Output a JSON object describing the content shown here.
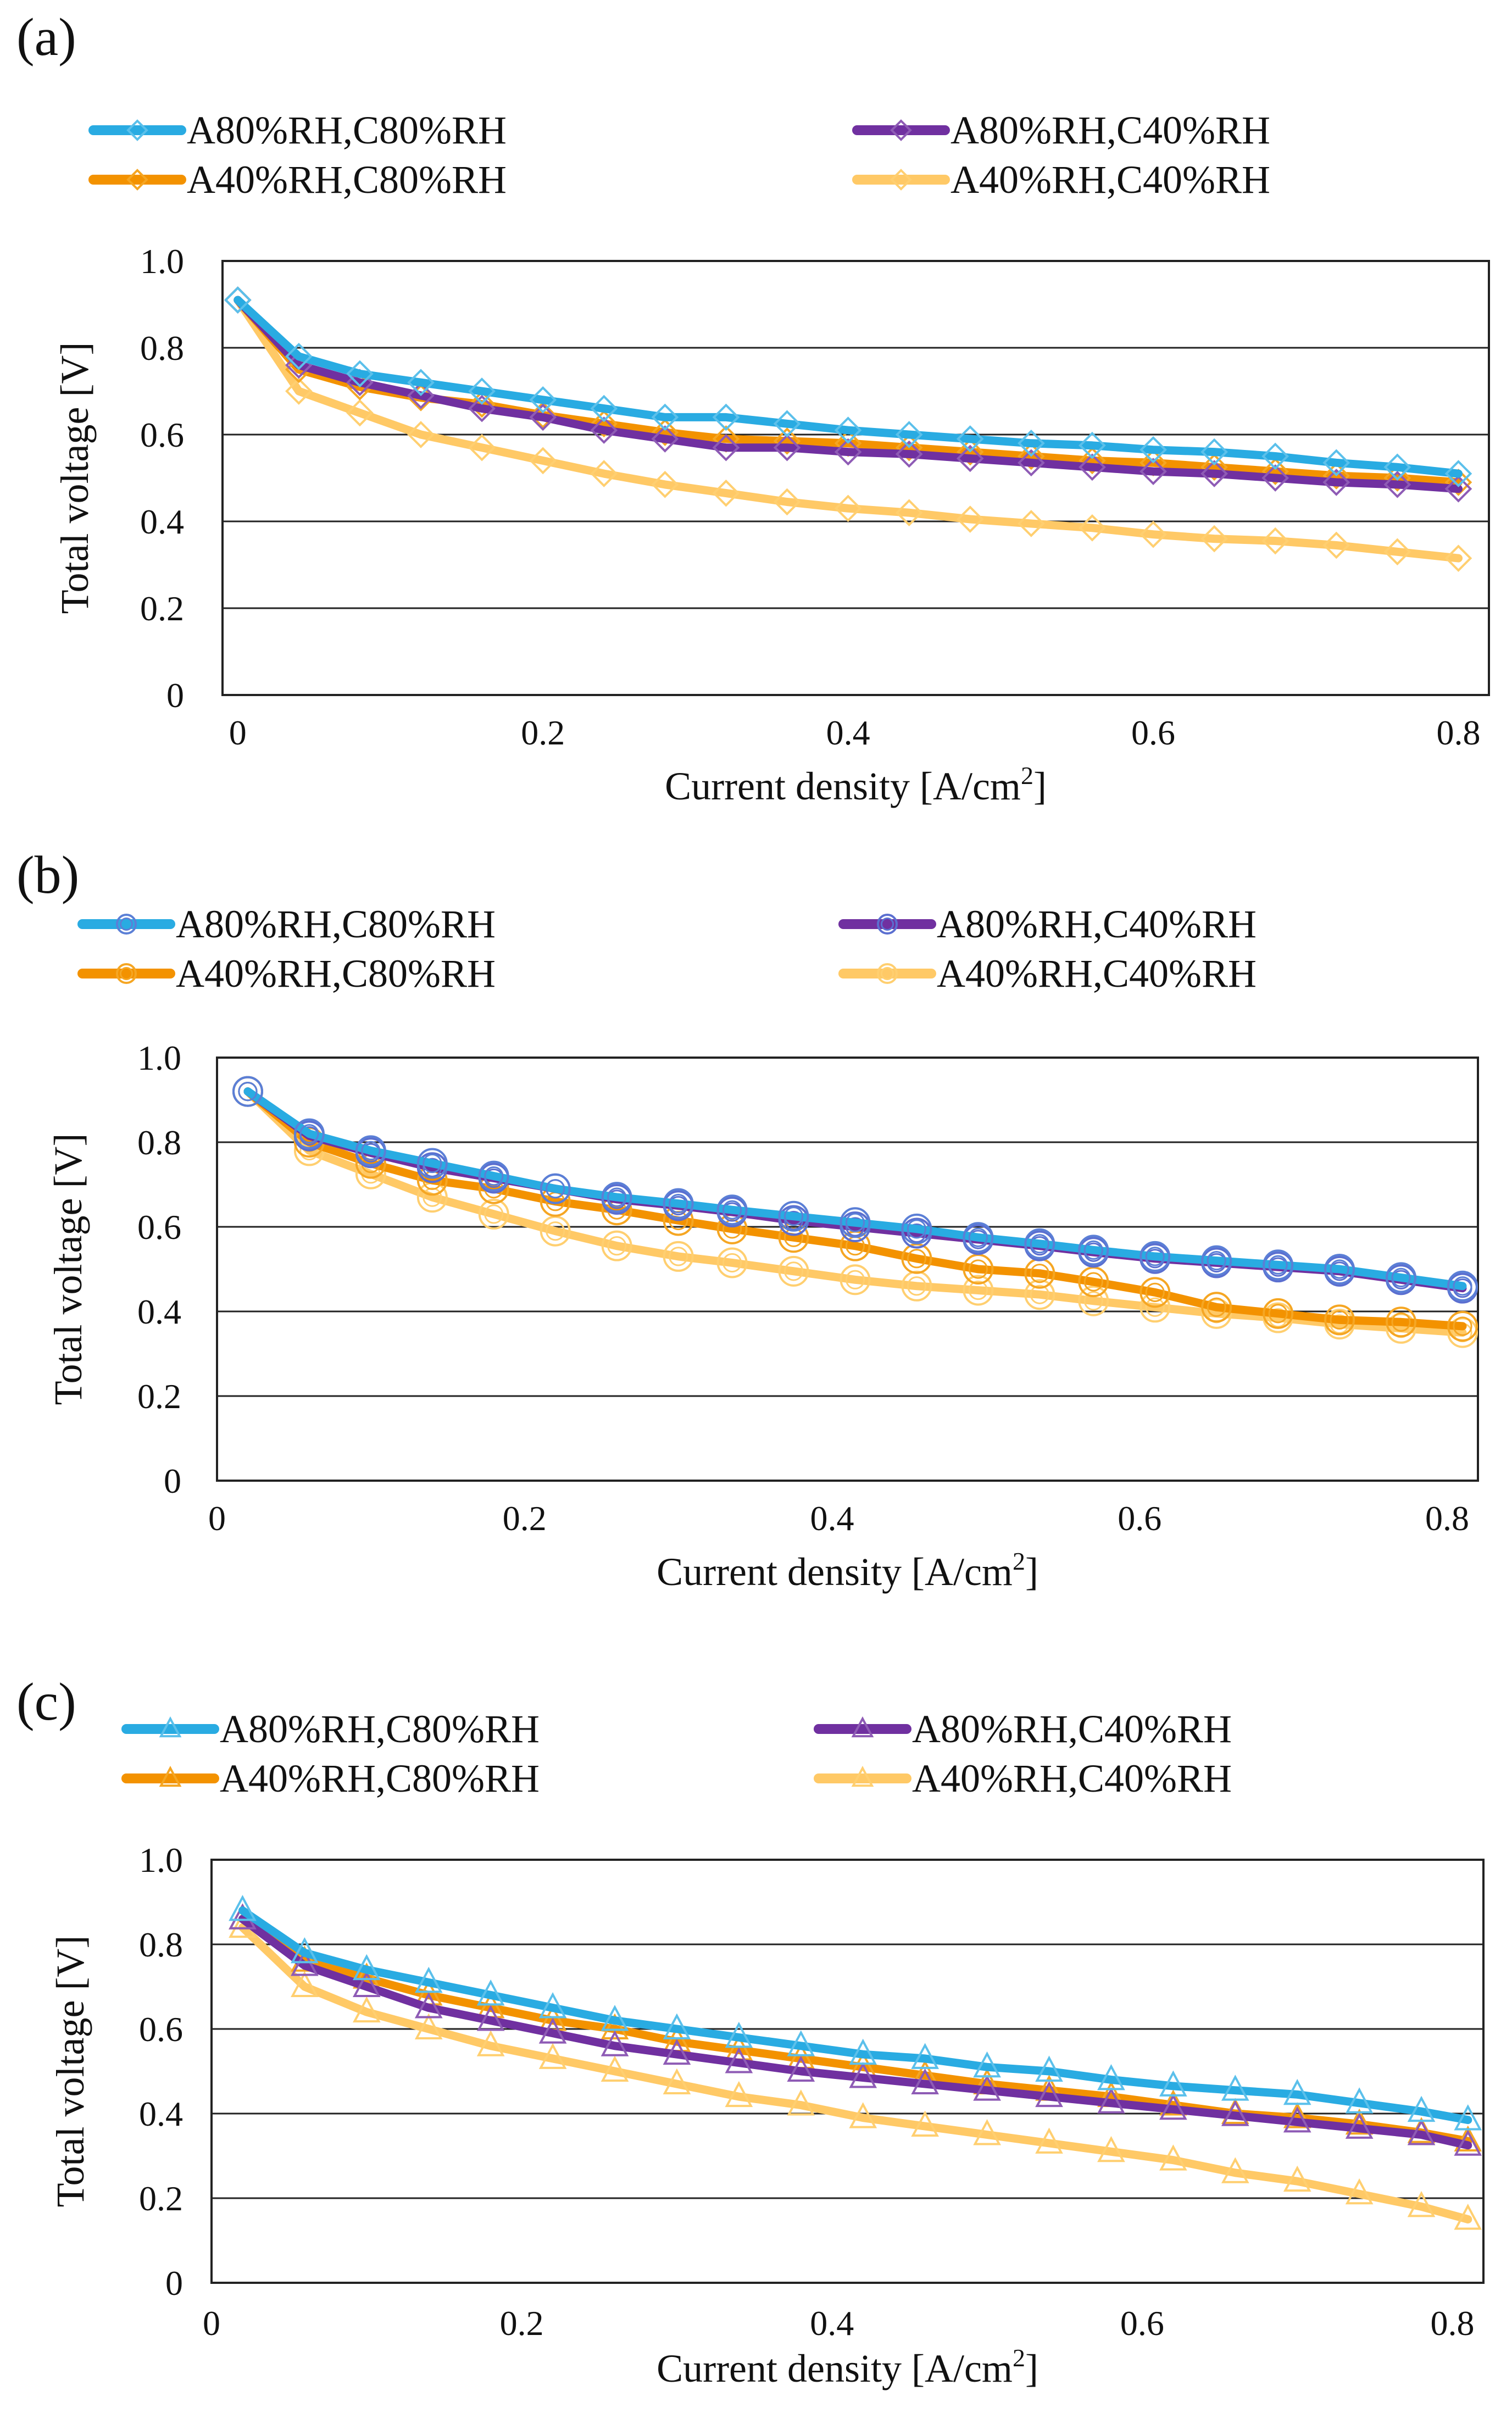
{
  "figure": {
    "panels": [
      {
        "label": "(a)",
        "xlabel_main": "Current density [A/cm",
        "xlabel_sup": "2",
        "xlabel_end": "]",
        "ylabel": "Total voltage [V]"
      },
      {
        "label": "(b)",
        "xlabel_main": "Current density [A/cm",
        "xlabel_sup": "2",
        "xlabel_end": "]",
        "ylabel": "Total voltage [V]"
      },
      {
        "label": "(c)",
        "xlabel_main": "Current density [A/cm",
        "xlabel_sup": "2",
        "xlabel_end": "]",
        "ylabel": "Total voltage [V]"
      }
    ]
  },
  "chart_data": [
    {
      "type": "line",
      "title": "(a)",
      "marker": "diamond",
      "xlabel": "Current density [A/cm2]",
      "ylabel": "Total voltage [V]",
      "xlim": [
        -0.01,
        0.82
      ],
      "ylim": [
        0,
        1.0
      ],
      "xticks": [
        0,
        0.2,
        0.4,
        0.6,
        0.8
      ],
      "xtick_labels": [
        "0",
        "0.2",
        "0.4",
        "0.6",
        "0.8"
      ],
      "yticks": [
        0,
        0.2,
        0.4,
        0.6,
        0.8,
        1.0
      ],
      "ytick_labels": [
        "0",
        "0.2",
        "0.4",
        "0.6",
        "0.8",
        "1.0"
      ],
      "grid": "horizontal",
      "x": [
        0,
        0.04,
        0.08,
        0.12,
        0.16,
        0.2,
        0.24,
        0.28,
        0.32,
        0.36,
        0.4,
        0.44,
        0.48,
        0.52,
        0.56,
        0.6,
        0.64,
        0.68,
        0.72,
        0.76,
        0.8
      ],
      "series": [
        {
          "name": "A80%RH,C80%RH",
          "color": "#29abe2",
          "marker_color": "#5bc0eb",
          "values": [
            0.91,
            0.78,
            0.74,
            0.72,
            0.7,
            0.68,
            0.66,
            0.64,
            0.64,
            0.625,
            0.61,
            0.6,
            0.59,
            0.58,
            0.575,
            0.565,
            0.56,
            0.55,
            0.535,
            0.525,
            0.51
          ]
        },
        {
          "name": "A80%RH,C40%RH",
          "color": "#7030a0",
          "marker_color": "#8e5bb5",
          "values": [
            0.91,
            0.76,
            0.72,
            0.69,
            0.66,
            0.64,
            0.61,
            0.59,
            0.57,
            0.57,
            0.56,
            0.555,
            0.545,
            0.535,
            0.525,
            0.515,
            0.51,
            0.5,
            0.49,
            0.485,
            0.475
          ]
        },
        {
          "name": "A40%RH,C80%RH",
          "color": "#f39200",
          "marker_color": "#f5a623",
          "values": [
            0.91,
            0.75,
            0.71,
            0.685,
            0.67,
            0.645,
            0.625,
            0.605,
            0.59,
            0.585,
            0.58,
            0.57,
            0.56,
            0.55,
            0.54,
            0.535,
            0.525,
            0.515,
            0.505,
            0.5,
            0.49
          ]
        },
        {
          "name": "A40%RH,C40%RH",
          "color": "#ffc966",
          "marker_color": "#ffcf70",
          "values": [
            0.91,
            0.7,
            0.65,
            0.6,
            0.57,
            0.54,
            0.51,
            0.485,
            0.465,
            0.445,
            0.43,
            0.42,
            0.405,
            0.395,
            0.385,
            0.37,
            0.36,
            0.355,
            0.345,
            0.33,
            0.315
          ]
        }
      ]
    },
    {
      "type": "line",
      "title": "(b)",
      "marker": "circle",
      "xlabel": "Current density [A/cm2]",
      "ylabel": "Total voltage [V]",
      "xlim": [
        0,
        0.82
      ],
      "ylim": [
        0,
        1.0
      ],
      "xticks": [
        0,
        0.2,
        0.4,
        0.6,
        0.8
      ],
      "xtick_labels": [
        "0",
        "0.2",
        "0.4",
        "0.6",
        "0.8"
      ],
      "yticks": [
        0,
        0.2,
        0.4,
        0.6,
        0.8,
        1.0
      ],
      "ytick_labels": [
        "0",
        "0.2",
        "0.4",
        "0.6",
        "0.8",
        "1.0"
      ],
      "grid": "horizontal",
      "x": [
        0.02,
        0.06,
        0.1,
        0.14,
        0.18,
        0.22,
        0.26,
        0.3,
        0.335,
        0.375,
        0.415,
        0.455,
        0.495,
        0.535,
        0.57,
        0.61,
        0.65,
        0.69,
        0.73,
        0.77,
        0.81
      ],
      "series": [
        {
          "name": "A80%RH,C80%RH",
          "color": "#29abe2",
          "marker_color": "#5b7fd6",
          "values": [
            0.92,
            0.82,
            0.78,
            0.75,
            0.72,
            0.69,
            0.67,
            0.655,
            0.64,
            0.625,
            0.61,
            0.595,
            0.575,
            0.56,
            0.545,
            0.53,
            0.52,
            0.51,
            0.5,
            0.48,
            0.46
          ]
        },
        {
          "name": "A80%RH,C40%RH",
          "color": "#7030a0",
          "marker_color": "#5b6fd0",
          "values": [
            0.92,
            0.815,
            0.775,
            0.74,
            0.715,
            0.69,
            0.665,
            0.65,
            0.635,
            0.615,
            0.6,
            0.585,
            0.57,
            0.555,
            0.54,
            0.525,
            0.515,
            0.505,
            0.495,
            0.475,
            0.455
          ]
        },
        {
          "name": "A40%RH,C80%RH",
          "color": "#f39200",
          "marker_color": "#f5a623",
          "values": [
            0.92,
            0.8,
            0.75,
            0.71,
            0.69,
            0.66,
            0.64,
            0.615,
            0.595,
            0.575,
            0.555,
            0.525,
            0.5,
            0.49,
            0.47,
            0.445,
            0.41,
            0.395,
            0.38,
            0.375,
            0.365
          ]
        },
        {
          "name": "A40%RH,C40%RH",
          "color": "#ffc966",
          "marker_color": "#ffcf70",
          "values": [
            0.92,
            0.78,
            0.725,
            0.67,
            0.63,
            0.59,
            0.555,
            0.53,
            0.515,
            0.495,
            0.475,
            0.46,
            0.45,
            0.44,
            0.425,
            0.41,
            0.395,
            0.385,
            0.37,
            0.36,
            0.35
          ]
        }
      ]
    },
    {
      "type": "line",
      "title": "(c)",
      "marker": "triangle",
      "xlabel": "Current density [A/cm2]",
      "ylabel": "Total voltage [V]",
      "xlim": [
        0,
        0.82
      ],
      "ylim": [
        0,
        1.0
      ],
      "xticks": [
        0,
        0.2,
        0.4,
        0.6,
        0.8
      ],
      "xtick_labels": [
        "0",
        "0.2",
        "0.4",
        "0.6",
        "0.8"
      ],
      "yticks": [
        0,
        0.2,
        0.4,
        0.6,
        0.8,
        1.0
      ],
      "ytick_labels": [
        "0",
        "0.2",
        "0.4",
        "0.6",
        "0.8",
        "1.0"
      ],
      "grid": "horizontal",
      "x": [
        0.02,
        0.06,
        0.1,
        0.14,
        0.18,
        0.22,
        0.26,
        0.3,
        0.34,
        0.38,
        0.42,
        0.46,
        0.5,
        0.54,
        0.58,
        0.62,
        0.66,
        0.7,
        0.74,
        0.78,
        0.81
      ],
      "series": [
        {
          "name": "A80%RH,C80%RH",
          "color": "#29abe2",
          "marker_color": "#5bc0eb",
          "values": [
            0.88,
            0.78,
            0.74,
            0.71,
            0.68,
            0.65,
            0.62,
            0.6,
            0.58,
            0.56,
            0.54,
            0.53,
            0.51,
            0.5,
            0.48,
            0.465,
            0.455,
            0.445,
            0.425,
            0.405,
            0.385
          ]
        },
        {
          "name": "A80%RH,C40%RH",
          "color": "#7030a0",
          "marker_color": "#8e5bb5",
          "values": [
            0.86,
            0.75,
            0.7,
            0.65,
            0.62,
            0.59,
            0.56,
            0.54,
            0.52,
            0.5,
            0.485,
            0.47,
            0.455,
            0.44,
            0.425,
            0.41,
            0.395,
            0.38,
            0.365,
            0.35,
            0.325
          ]
        },
        {
          "name": "A40%RH,C80%RH",
          "color": "#f39200",
          "marker_color": "#f5a623",
          "values": [
            0.86,
            0.76,
            0.72,
            0.68,
            0.65,
            0.62,
            0.6,
            0.57,
            0.55,
            0.53,
            0.51,
            0.49,
            0.47,
            0.455,
            0.44,
            0.42,
            0.4,
            0.39,
            0.375,
            0.355,
            0.335
          ]
        },
        {
          "name": "A40%RH,C40%RH",
          "color": "#ffc966",
          "marker_color": "#ffcf70",
          "values": [
            0.84,
            0.7,
            0.64,
            0.6,
            0.56,
            0.53,
            0.5,
            0.47,
            0.44,
            0.42,
            0.39,
            0.37,
            0.35,
            0.33,
            0.31,
            0.29,
            0.26,
            0.24,
            0.21,
            0.18,
            0.15
          ]
        }
      ]
    }
  ]
}
